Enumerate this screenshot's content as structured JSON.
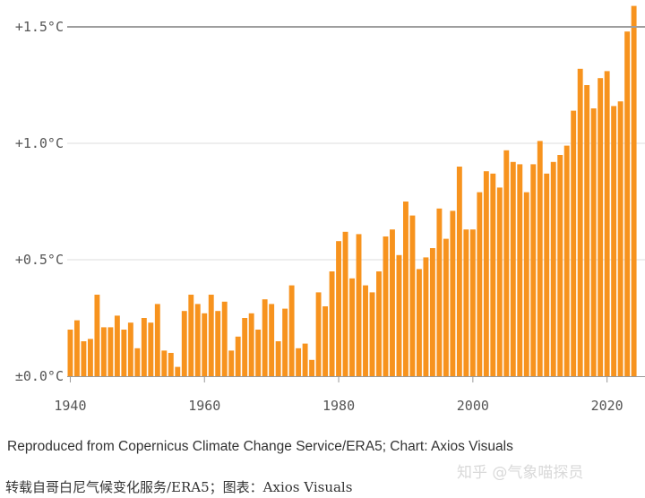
{
  "colors": {
    "bar": "#F7931E",
    "grid": "#dddddd",
    "threshold": "#9e9e9e",
    "axis": "#999999",
    "text": "#555555"
  },
  "chart_data": {
    "type": "bar",
    "title": "",
    "xlabel": "",
    "ylabel": "",
    "x_ticks": [
      "1940",
      "1960",
      "1980",
      "2000",
      "2020"
    ],
    "y_ticks": [
      {
        "value": 0,
        "label": "±0.0°C"
      },
      {
        "value": 0.5,
        "label": "+0.5°C"
      },
      {
        "value": 1.0,
        "label": "+1.0°C"
      },
      {
        "value": 1.5,
        "label": "+1.5°C"
      }
    ],
    "reference_line": 1.5,
    "ylim": [
      0,
      1.6
    ],
    "grid": true,
    "x": [
      1940,
      1941,
      1942,
      1943,
      1944,
      1945,
      1946,
      1947,
      1948,
      1949,
      1950,
      1951,
      1952,
      1953,
      1954,
      1955,
      1956,
      1957,
      1958,
      1959,
      1960,
      1961,
      1962,
      1963,
      1964,
      1965,
      1966,
      1967,
      1968,
      1969,
      1970,
      1971,
      1972,
      1973,
      1974,
      1975,
      1976,
      1977,
      1978,
      1979,
      1980,
      1981,
      1982,
      1983,
      1984,
      1985,
      1986,
      1987,
      1988,
      1989,
      1990,
      1991,
      1992,
      1993,
      1994,
      1995,
      1996,
      1997,
      1998,
      1999,
      2000,
      2001,
      2002,
      2003,
      2004,
      2005,
      2006,
      2007,
      2008,
      2009,
      2010,
      2011,
      2012,
      2013,
      2014,
      2015,
      2016,
      2017,
      2018,
      2019,
      2020,
      2021,
      2022,
      2023,
      2024
    ],
    "values": [
      0.2,
      0.24,
      0.15,
      0.16,
      0.35,
      0.21,
      0.21,
      0.26,
      0.2,
      0.23,
      0.12,
      0.25,
      0.23,
      0.31,
      0.11,
      0.1,
      0.04,
      0.28,
      0.35,
      0.31,
      0.27,
      0.35,
      0.28,
      0.32,
      0.11,
      0.17,
      0.25,
      0.27,
      0.2,
      0.33,
      0.31,
      0.15,
      0.29,
      0.39,
      0.12,
      0.14,
      0.07,
      0.36,
      0.3,
      0.45,
      0.58,
      0.62,
      0.42,
      0.61,
      0.39,
      0.36,
      0.45,
      0.6,
      0.63,
      0.52,
      0.75,
      0.69,
      0.46,
      0.51,
      0.55,
      0.72,
      0.59,
      0.71,
      0.9,
      0.63,
      0.63,
      0.79,
      0.88,
      0.87,
      0.81,
      0.97,
      0.92,
      0.91,
      0.79,
      0.91,
      1.01,
      0.87,
      0.92,
      0.95,
      0.99,
      1.14,
      1.32,
      1.25,
      1.15,
      1.28,
      1.31,
      1.16,
      1.18,
      1.48,
      1.59
    ]
  },
  "source_text": "Reproduced from Copernicus Climate Change Service/ERA5; Chart: Axios Visuals",
  "caption_cn": "转载自哥白尼气候变化服务/ERA5；图表：Axios Visuals",
  "watermark": "知乎 @气象喵探员"
}
